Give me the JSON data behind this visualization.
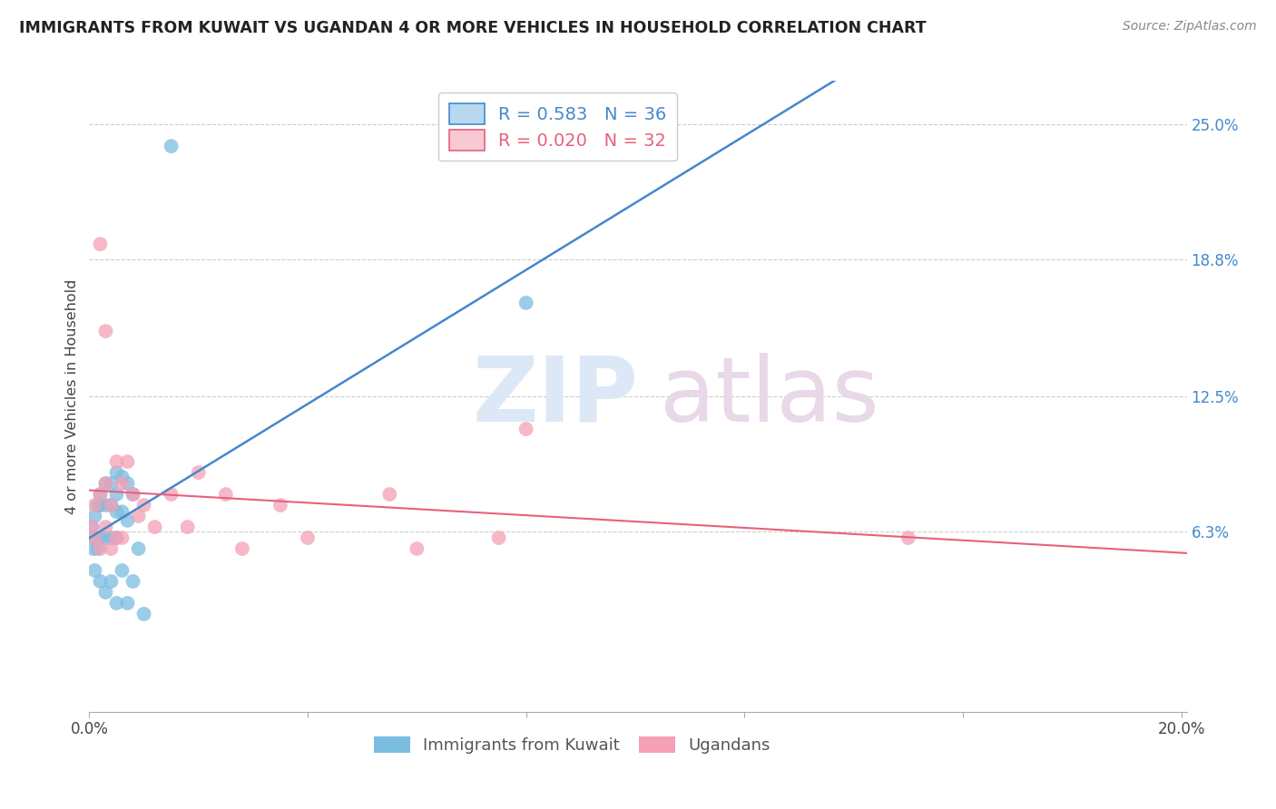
{
  "title": "IMMIGRANTS FROM KUWAIT VS UGANDAN 4 OR MORE VEHICLES IN HOUSEHOLD CORRELATION CHART",
  "source": "Source: ZipAtlas.com",
  "ylabel": "4 or more Vehicles in Household",
  "blue_label": "Immigrants from Kuwait",
  "pink_label": "Ugandans",
  "blue_R": "0.583",
  "blue_N": "36",
  "pink_R": "0.020",
  "pink_N": "32",
  "blue_color": "#7bbde0",
  "pink_color": "#f4a0b5",
  "blue_line_color": "#4488cc",
  "pink_line_color": "#e8607a",
  "legend_blue_fill": "#b8d8f0",
  "legend_pink_fill": "#f8c8d4",
  "xlim": [
    0.0,
    0.201
  ],
  "ylim": [
    -0.02,
    0.27
  ],
  "right_yticks": [
    0.063,
    0.125,
    0.188,
    0.25
  ],
  "right_yticklabels": [
    "6.3%",
    "12.5%",
    "18.8%",
    "25.0%"
  ],
  "blue_x": [
    0.0005,
    0.0007,
    0.001,
    0.001,
    0.001,
    0.0015,
    0.0015,
    0.002,
    0.002,
    0.002,
    0.002,
    0.003,
    0.003,
    0.003,
    0.003,
    0.004,
    0.004,
    0.004,
    0.004,
    0.005,
    0.005,
    0.005,
    0.005,
    0.005,
    0.006,
    0.006,
    0.006,
    0.007,
    0.007,
    0.007,
    0.008,
    0.008,
    0.009,
    0.01,
    0.015,
    0.08
  ],
  "blue_y": [
    0.065,
    0.055,
    0.07,
    0.06,
    0.045,
    0.075,
    0.055,
    0.08,
    0.075,
    0.06,
    0.04,
    0.085,
    0.075,
    0.06,
    0.035,
    0.085,
    0.075,
    0.06,
    0.04,
    0.09,
    0.08,
    0.072,
    0.06,
    0.03,
    0.088,
    0.072,
    0.045,
    0.085,
    0.068,
    0.03,
    0.08,
    0.04,
    0.055,
    0.025,
    0.24,
    0.168
  ],
  "pink_x": [
    0.0005,
    0.001,
    0.001,
    0.002,
    0.002,
    0.003,
    0.003,
    0.004,
    0.004,
    0.005,
    0.005,
    0.006,
    0.006,
    0.007,
    0.008,
    0.009,
    0.01,
    0.012,
    0.015,
    0.018,
    0.02,
    0.025,
    0.028,
    0.035,
    0.04,
    0.055,
    0.06,
    0.075,
    0.08,
    0.15,
    0.002,
    0.003
  ],
  "pink_y": [
    0.065,
    0.075,
    0.06,
    0.08,
    0.055,
    0.085,
    0.065,
    0.075,
    0.055,
    0.095,
    0.06,
    0.085,
    0.06,
    0.095,
    0.08,
    0.07,
    0.075,
    0.065,
    0.08,
    0.065,
    0.09,
    0.08,
    0.055,
    0.075,
    0.06,
    0.08,
    0.055,
    0.06,
    0.11,
    0.06,
    0.195,
    0.155
  ]
}
